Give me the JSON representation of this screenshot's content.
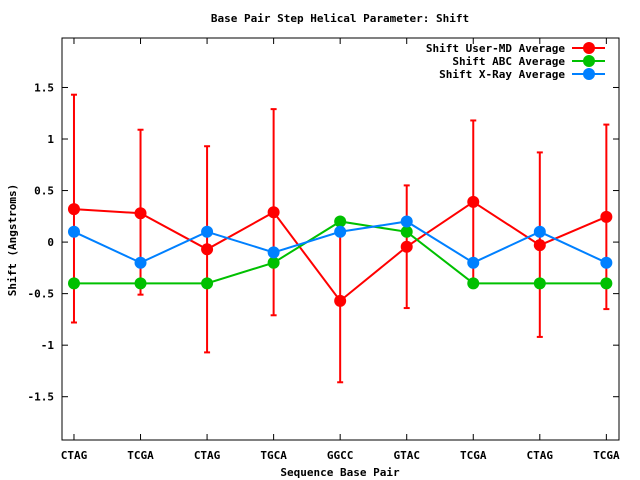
{
  "chart_data": {
    "type": "line",
    "title": "Base Pair Step Helical Parameter: Shift",
    "xlabel": "Sequence Base Pair",
    "ylabel": "Shift (Angstroms)",
    "categories": [
      "CTAG",
      "TCGA",
      "CTAG",
      "TGCA",
      "GGCC",
      "GTAC",
      "TCGA",
      "CTAG",
      "TCGA"
    ],
    "xlim": [
      -0.18,
      8.19
    ],
    "ylim": [
      -1.92,
      1.98
    ],
    "yticks": [
      -1.5,
      -1,
      -0.5,
      0,
      0.5,
      1,
      1.5
    ],
    "ytick_labels": [
      "-1.5",
      "-1",
      "-0.5",
      "0",
      "0.5",
      "1",
      "1.5"
    ],
    "legend_position": "top-right",
    "series": [
      {
        "name": "Shift User-MD Average",
        "color": "#ff0000",
        "values": [
          0.32,
          0.28,
          -0.07,
          0.29,
          -0.57,
          -0.045,
          0.39,
          -0.03,
          0.245
        ],
        "err_low": [
          -0.78,
          -0.51,
          -1.07,
          -0.71,
          -1.36,
          -0.64,
          -0.4,
          -0.92,
          -0.65
        ],
        "err_high": [
          1.43,
          1.09,
          0.93,
          1.29,
          0.22,
          0.55,
          1.18,
          0.87,
          1.14
        ]
      },
      {
        "name": "Shift ABC Average",
        "color": "#00c000",
        "values": [
          -0.4,
          -0.4,
          -0.4,
          -0.2,
          0.2,
          0.1,
          -0.4,
          -0.4,
          -0.4
        ]
      },
      {
        "name": "Shift X-Ray Average",
        "color": "#0080ff",
        "values": [
          0.1,
          -0.2,
          0.1,
          -0.1,
          0.1,
          0.2,
          -0.2,
          0.1,
          -0.2
        ]
      }
    ]
  }
}
